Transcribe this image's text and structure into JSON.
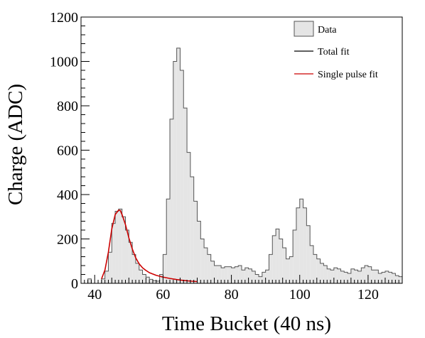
{
  "chart_data": {
    "type": "bar",
    "xlabel": "Time Bucket (40 ns)",
    "ylabel": "Charge (ADC)",
    "xlim": [
      36,
      130
    ],
    "ylim": [
      0,
      1200
    ],
    "x_ticks": [
      40,
      60,
      80,
      100,
      120
    ],
    "y_ticks": [
      0,
      200,
      400,
      600,
      800,
      1000,
      1200
    ],
    "legend_position": "top-right",
    "colors": {
      "data_fill": "#e5e5e5",
      "data_edge": "#555555",
      "total_fit": "#000000",
      "single_fit": "#cc0000"
    },
    "series": [
      {
        "name": "Data",
        "style": "histogram",
        "bin_width": 1,
        "x": [
          38,
          42,
          43,
          44,
          45,
          46,
          47,
          48,
          49,
          50,
          51,
          52,
          53,
          54,
          55,
          56,
          57,
          58,
          59,
          60,
          61,
          62,
          63,
          64,
          65,
          66,
          67,
          68,
          69,
          70,
          71,
          72,
          73,
          74,
          75,
          76,
          77,
          78,
          79,
          80,
          81,
          82,
          83,
          84,
          85,
          86,
          87,
          88,
          89,
          90,
          91,
          92,
          93,
          94,
          95,
          96,
          97,
          98,
          99,
          100,
          101,
          102,
          103,
          104,
          105,
          106,
          107,
          108,
          109,
          110,
          111,
          112,
          113,
          114,
          115,
          116,
          117,
          118,
          119,
          120,
          121,
          122,
          123,
          124,
          125,
          126,
          127,
          128,
          129
        ],
        "values": [
          20,
          20,
          55,
          140,
          270,
          325,
          335,
          300,
          240,
          185,
          130,
          90,
          60,
          40,
          28,
          18,
          12,
          10,
          40,
          130,
          380,
          740,
          1000,
          1060,
          960,
          790,
          590,
          480,
          370,
          280,
          200,
          160,
          130,
          100,
          80,
          80,
          70,
          75,
          75,
          70,
          75,
          80,
          60,
          70,
          65,
          55,
          40,
          30,
          50,
          60,
          130,
          215,
          245,
          200,
          160,
          110,
          120,
          240,
          340,
          380,
          340,
          260,
          170,
          130,
          110,
          90,
          80,
          65,
          60,
          70,
          65,
          55,
          50,
          45,
          65,
          60,
          55,
          70,
          80,
          75,
          60,
          60,
          45,
          50,
          55,
          50,
          45,
          35,
          30
        ]
      },
      {
        "name": "Total fit",
        "style": "line",
        "x": [],
        "values": []
      },
      {
        "name": "Single pulse fit",
        "style": "line",
        "x": [
          42,
          43,
          44,
          45,
          46,
          47,
          47.5,
          48,
          49,
          50,
          51,
          52,
          53,
          54,
          55,
          56,
          58,
          60,
          62,
          64,
          66,
          68,
          70
        ],
        "values": [
          20,
          60,
          140,
          245,
          310,
          330,
          328,
          310,
          265,
          205,
          155,
          115,
          88,
          70,
          58,
          48,
          36,
          28,
          22,
          17,
          13,
          10,
          8
        ]
      }
    ]
  }
}
